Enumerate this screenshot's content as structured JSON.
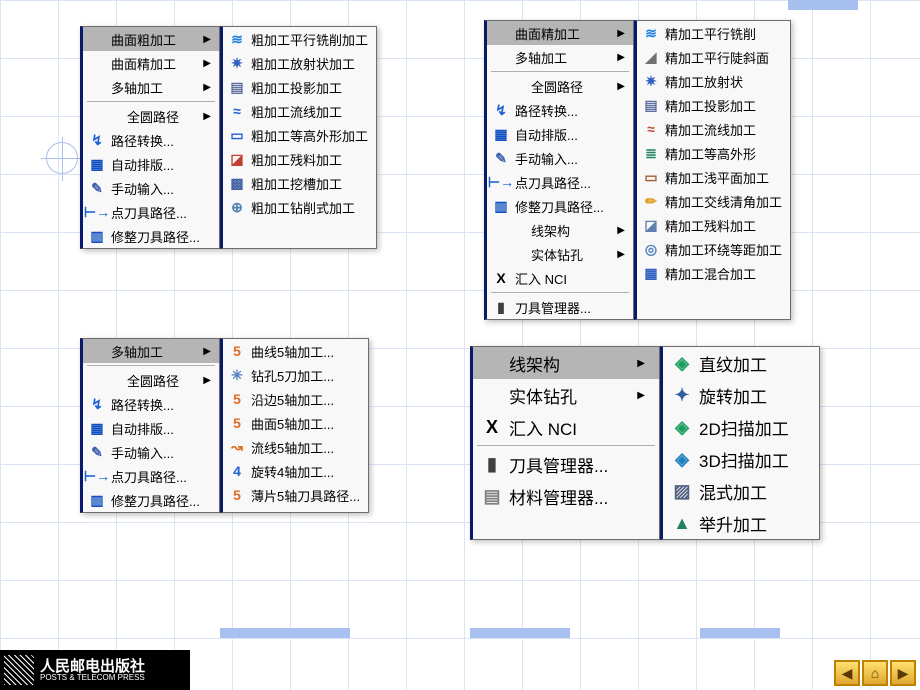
{
  "publisher": {
    "cn": "人民邮电出版社",
    "en": "POSTS & TELECOM PRESS"
  },
  "nav": {
    "prev": "◀",
    "home": "⌂",
    "next": "▶"
  },
  "group1": {
    "left": [
      {
        "label": "曲面粗加工",
        "hl": true,
        "arrow": true
      },
      {
        "label": "曲面精加工",
        "arrow": true
      },
      {
        "label": "多轴加工",
        "arrow": true
      },
      {
        "sep": true
      },
      {
        "label": "全圆路径",
        "arrow": true,
        "indent": true
      },
      {
        "label": "路径转换...",
        "icon": "↯",
        "iconColor": "#2060d0"
      },
      {
        "label": "自动排版...",
        "icon": "▦",
        "iconColor": "#1050c0"
      },
      {
        "label": "手动输入...",
        "icon": "✎",
        "iconColor": "#4060b0"
      },
      {
        "label": "点刀具路径...",
        "icon": "⊢→",
        "iconColor": "#1060d0"
      },
      {
        "label": "修整刀具路径...",
        "icon": "▥",
        "iconColor": "#1050c0"
      }
    ],
    "right": [
      {
        "label": "粗加工平行铣削加工",
        "icon": "≋",
        "iconColor": "#2080e0"
      },
      {
        "label": "粗加工放射状加工",
        "icon": "✷",
        "iconColor": "#3060c0"
      },
      {
        "label": "粗加工投影加工",
        "icon": "▤",
        "iconColor": "#6070a0"
      },
      {
        "label": "粗加工流线加工",
        "icon": "≈",
        "iconColor": "#2060d0"
      },
      {
        "label": "粗加工等高外形加工",
        "icon": "▭",
        "iconColor": "#2060d0"
      },
      {
        "label": "粗加工残料加工",
        "icon": "◪",
        "iconColor": "#c04030"
      },
      {
        "label": "粗加工挖槽加工",
        "icon": "▩",
        "iconColor": "#4060a0"
      },
      {
        "label": "粗加工钻削式加工",
        "icon": "⊕",
        "iconColor": "#5080b0"
      }
    ]
  },
  "group2": {
    "left": [
      {
        "label": "曲面精加工",
        "hl": true,
        "arrow": true
      },
      {
        "label": "多轴加工",
        "arrow": true
      },
      {
        "sep": true
      },
      {
        "label": "全圆路径",
        "arrow": true,
        "indent": true
      },
      {
        "label": "路径转换...",
        "icon": "↯",
        "iconColor": "#2060d0"
      },
      {
        "label": "自动排版...",
        "icon": "▦",
        "iconColor": "#1050c0"
      },
      {
        "label": "手动输入...",
        "icon": "✎",
        "iconColor": "#4060b0"
      },
      {
        "label": "点刀具路径...",
        "icon": "⊢→",
        "iconColor": "#1060d0"
      },
      {
        "label": "修整刀具路径...",
        "icon": "▥",
        "iconColor": "#1050c0"
      },
      {
        "label": "线架构",
        "arrow": true,
        "indent": true
      },
      {
        "label": "实体钻孔",
        "arrow": true,
        "indent": true
      },
      {
        "label": "汇入 NCI",
        "icon": "X",
        "iconColor": "#000"
      },
      {
        "sep": true
      },
      {
        "label": "刀具管理器...",
        "icon": "▮",
        "iconColor": "#404040"
      }
    ],
    "right": [
      {
        "label": "精加工平行铣削",
        "icon": "≋",
        "iconColor": "#2080e0"
      },
      {
        "label": "精加工平行陡斜面",
        "icon": "◢",
        "iconColor": "#707070"
      },
      {
        "label": "精加工放射状",
        "icon": "✷",
        "iconColor": "#3060c0"
      },
      {
        "label": "精加工投影加工",
        "icon": "▤",
        "iconColor": "#6070a0"
      },
      {
        "label": "精加工流线加工",
        "icon": "≈",
        "iconColor": "#c05030"
      },
      {
        "label": "精加工等高外形",
        "icon": "≣",
        "iconColor": "#208060"
      },
      {
        "label": "精加工浅平面加工",
        "icon": "▭",
        "iconColor": "#a06030"
      },
      {
        "label": "精加工交线清角加工",
        "icon": "✏",
        "iconColor": "#e0a020"
      },
      {
        "label": "精加工残料加工",
        "icon": "◪",
        "iconColor": "#6080b0"
      },
      {
        "label": "精加工环绕等距加工",
        "icon": "◎",
        "iconColor": "#5080c0"
      },
      {
        "label": "精加工混合加工",
        "icon": "▦",
        "iconColor": "#3060c0"
      }
    ]
  },
  "group3": {
    "left": [
      {
        "label": "多轴加工",
        "hl": true,
        "arrow": true
      },
      {
        "sep": true
      },
      {
        "label": "全圆路径",
        "arrow": true,
        "indent": true
      },
      {
        "label": "路径转换...",
        "icon": "↯",
        "iconColor": "#2060d0"
      },
      {
        "label": "自动排版...",
        "icon": "▦",
        "iconColor": "#1050c0"
      },
      {
        "label": "手动输入...",
        "icon": "✎",
        "iconColor": "#4060b0"
      },
      {
        "label": "点刀具路径...",
        "icon": "⊢→",
        "iconColor": "#1060d0"
      },
      {
        "label": "修整刀具路径...",
        "icon": "▥",
        "iconColor": "#1050c0"
      }
    ],
    "right": [
      {
        "label": "曲线5轴加工...",
        "icon": "5",
        "iconColor": "#e07020"
      },
      {
        "label": "钻孔5刀加工...",
        "icon": "✳",
        "iconColor": "#5080c0"
      },
      {
        "label": "沿边5轴加工...",
        "icon": "5",
        "iconColor": "#e07020"
      },
      {
        "label": "曲面5轴加工...",
        "icon": "5",
        "iconColor": "#e07020"
      },
      {
        "label": "流线5轴加工...",
        "icon": "↝",
        "iconColor": "#e07020"
      },
      {
        "label": "旋转4轴加工...",
        "icon": "4",
        "iconColor": "#2060d0"
      },
      {
        "label": "薄片5轴刀具路径...",
        "icon": "5",
        "iconColor": "#e07020"
      }
    ]
  },
  "group4": {
    "left": [
      {
        "label": "线架构",
        "hl": true,
        "arrow": true
      },
      {
        "label": "实体钻孔",
        "arrow": true
      },
      {
        "label": "汇入 NCI",
        "icon": "X",
        "iconColor": "#000"
      },
      {
        "sep": true
      },
      {
        "label": "刀具管理器...",
        "icon": "▮",
        "iconColor": "#404040"
      },
      {
        "label": "材料管理器...",
        "icon": "▤",
        "iconColor": "#808080"
      }
    ],
    "right": [
      {
        "label": "直纹加工",
        "icon": "◈",
        "iconColor": "#20a060"
      },
      {
        "label": "旋转加工",
        "icon": "✦",
        "iconColor": "#3060a0"
      },
      {
        "label": "2D扫描加工",
        "icon": "◈",
        "iconColor": "#20a060"
      },
      {
        "label": "3D扫描加工",
        "icon": "◈",
        "iconColor": "#2080c0"
      },
      {
        "label": "混式加工",
        "icon": "▨",
        "iconColor": "#506080"
      },
      {
        "label": "举升加工",
        "icon": "▲",
        "iconColor": "#208060"
      }
    ]
  }
}
